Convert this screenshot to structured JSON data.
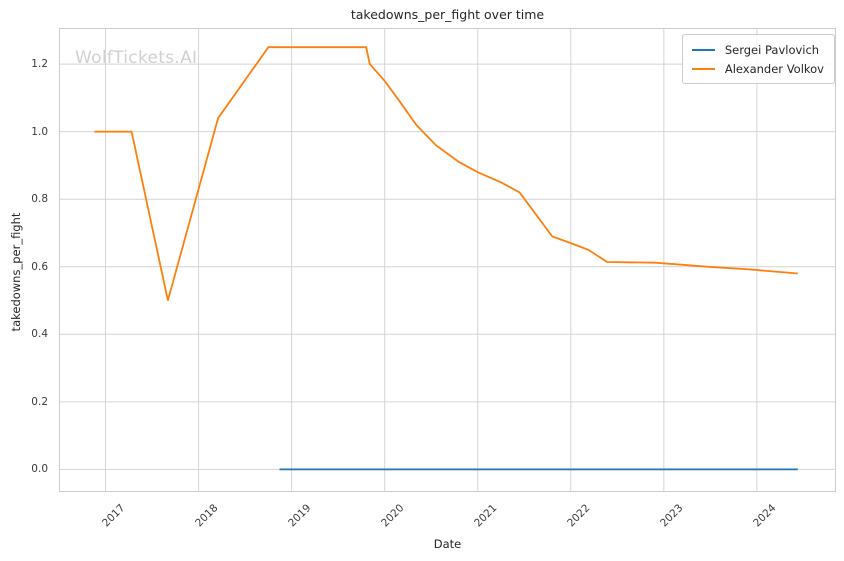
{
  "watermark": {
    "text": "WolfTickets.AI",
    "color": "#d0d0d0"
  },
  "chart_data": {
    "type": "line",
    "title": "takedowns_per_fight over time",
    "xlabel": "Date",
    "ylabel": "takedowns_per_fight",
    "xlim": [
      2016.5,
      2024.85
    ],
    "ylim": [
      -0.067,
      1.307
    ],
    "grid": true,
    "legend_position": "upper right",
    "x_ticks": [
      {
        "label": "2017",
        "value": 2017
      },
      {
        "label": "2018",
        "value": 2018
      },
      {
        "label": "2019",
        "value": 2019
      },
      {
        "label": "2020",
        "value": 2020
      },
      {
        "label": "2021",
        "value": 2021
      },
      {
        "label": "2022",
        "value": 2022
      },
      {
        "label": "2023",
        "value": 2023
      },
      {
        "label": "2024",
        "value": 2024
      }
    ],
    "y_ticks": [
      {
        "label": "0.0",
        "value": 0.0
      },
      {
        "label": "0.2",
        "value": 0.2
      },
      {
        "label": "0.4",
        "value": 0.4
      },
      {
        "label": "0.6",
        "value": 0.6
      },
      {
        "label": "0.8",
        "value": 0.8
      },
      {
        "label": "1.0",
        "value": 1.0
      },
      {
        "label": "1.2",
        "value": 1.2
      }
    ],
    "series": [
      {
        "name": "Sergei Pavlovich",
        "color": "#1f77b4",
        "points": [
          [
            2018.87,
            0.0
          ],
          [
            2024.44,
            0.0
          ]
        ]
      },
      {
        "name": "Alexander Volkov",
        "color": "#ff7f0e",
        "points": [
          [
            2016.88,
            1.0
          ],
          [
            2017.28,
            1.0
          ],
          [
            2017.67,
            0.5
          ],
          [
            2018.21,
            1.04
          ],
          [
            2018.75,
            1.25
          ],
          [
            2019.8,
            1.25
          ],
          [
            2019.84,
            1.2
          ],
          [
            2020.0,
            1.15
          ],
          [
            2020.16,
            1.09
          ],
          [
            2020.34,
            1.02
          ],
          [
            2020.55,
            0.96
          ],
          [
            2020.8,
            0.91
          ],
          [
            2021.0,
            0.88
          ],
          [
            2021.25,
            0.85
          ],
          [
            2021.45,
            0.82
          ],
          [
            2021.8,
            0.69
          ],
          [
            2022.0,
            0.67
          ],
          [
            2022.19,
            0.65
          ],
          [
            2022.39,
            0.614
          ],
          [
            2022.91,
            0.612
          ],
          [
            2023.48,
            0.6
          ],
          [
            2023.88,
            0.593
          ],
          [
            2024.44,
            0.58
          ]
        ]
      }
    ],
    "style": {
      "grid_color": "#d4d4d4",
      "spine_color": "#cbcbcb",
      "line_width": 1.8
    }
  }
}
